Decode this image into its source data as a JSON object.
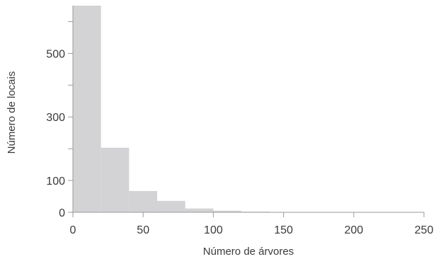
{
  "chart_data": {
    "type": "bar",
    "xlabel": "Número de árvores",
    "ylabel": "Número de locais",
    "xlim": [
      0,
      250
    ],
    "ylim": [
      0,
      650
    ],
    "x_ticks": [
      0,
      50,
      100,
      150,
      200,
      250
    ],
    "y_ticks": [
      0,
      100,
      300,
      500
    ],
    "y_minor_ticks": [
      200,
      400,
      600
    ],
    "grid": false,
    "bar_color": "#d3d3d5",
    "axis_color": "#9a9a9a",
    "bins": [
      {
        "x0": 0,
        "x1": 20,
        "value": 650
      },
      {
        "x0": 20,
        "x1": 40,
        "value": 203
      },
      {
        "x0": 40,
        "x1": 60,
        "value": 67
      },
      {
        "x0": 60,
        "x1": 80,
        "value": 36
      },
      {
        "x0": 80,
        "x1": 100,
        "value": 12
      },
      {
        "x0": 100,
        "x1": 120,
        "value": 5
      },
      {
        "x0": 120,
        "x1": 140,
        "value": 2
      },
      {
        "x0": 140,
        "x1": 160,
        "value": 1
      },
      {
        "x0": 160,
        "x1": 180,
        "value": 1
      },
      {
        "x0": 180,
        "x1": 200,
        "value": 1
      },
      {
        "x0": 200,
        "x1": 220,
        "value": 1
      },
      {
        "x0": 220,
        "x1": 240,
        "value": 1
      },
      {
        "x0": 240,
        "x1": 250,
        "value": 1
      }
    ]
  }
}
